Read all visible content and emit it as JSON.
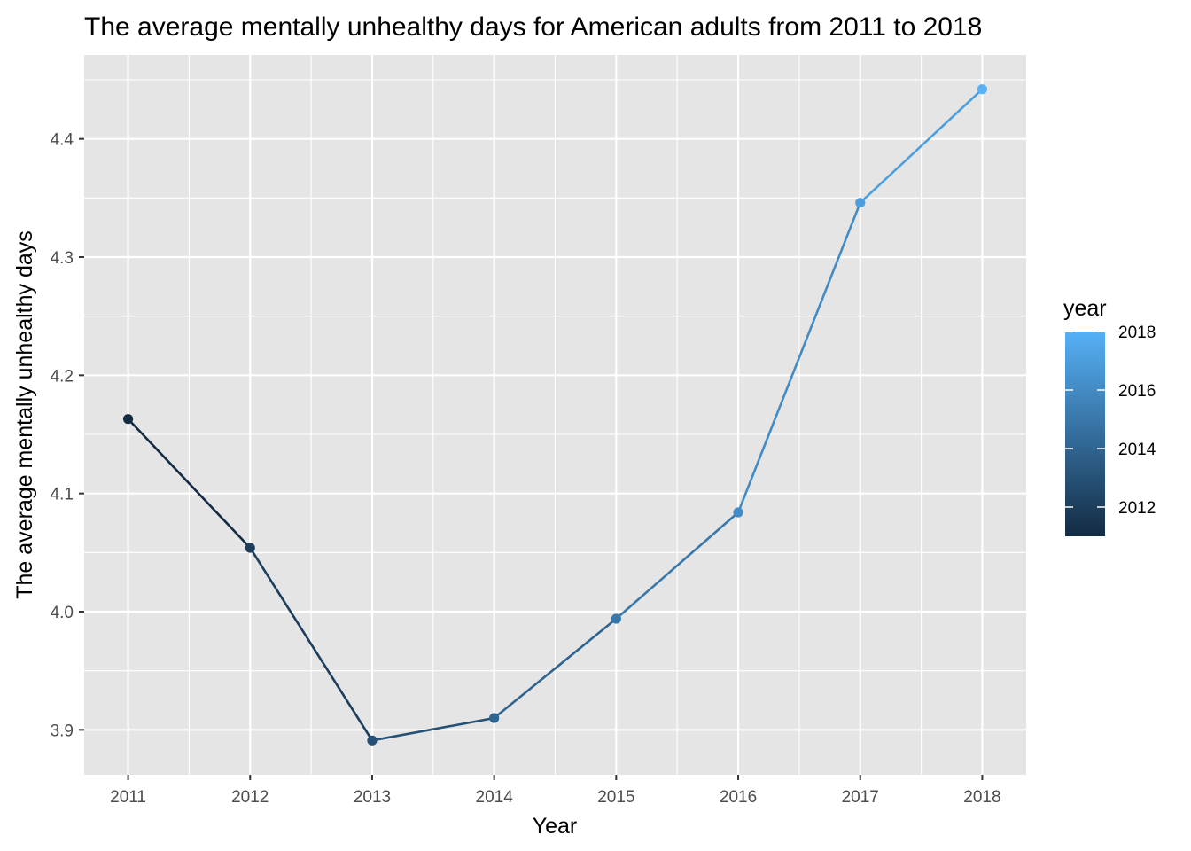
{
  "chart_data": {
    "type": "line",
    "title": "The average mentally unhealthy days for American adults from 2011 to 2018",
    "xlabel": "Year",
    "ylabel": "The average mentally unhealthy days",
    "x": [
      2011,
      2012,
      2013,
      2014,
      2015,
      2016,
      2017,
      2018
    ],
    "values": [
      4.163,
      4.054,
      3.891,
      3.91,
      3.994,
      4.084,
      4.346,
      4.442
    ],
    "xlim": [
      2010.64,
      2018.36
    ],
    "ylim": [
      3.862,
      4.471
    ],
    "x_ticks": [
      "2011",
      "2012",
      "2013",
      "2014",
      "2015",
      "2016",
      "2017",
      "2018"
    ],
    "y_ticks": [
      "3.9",
      "4.0",
      "4.1",
      "4.2",
      "4.3",
      "4.4"
    ],
    "y_tick_values": [
      3.9,
      4.0,
      4.1,
      4.2,
      4.3,
      4.4
    ],
    "grid": true,
    "panel_background": "#e5e5e5",
    "grid_color": "#ffffff",
    "legend": {
      "placement": "right",
      "title": "year",
      "type": "colorbar",
      "range": [
        2011,
        2018
      ],
      "low_color": "#132b43",
      "high_color": "#56b1f7",
      "ticks": [
        "2012",
        "2014",
        "2016",
        "2018"
      ],
      "tick_values": [
        2012,
        2014,
        2016,
        2018
      ]
    }
  }
}
